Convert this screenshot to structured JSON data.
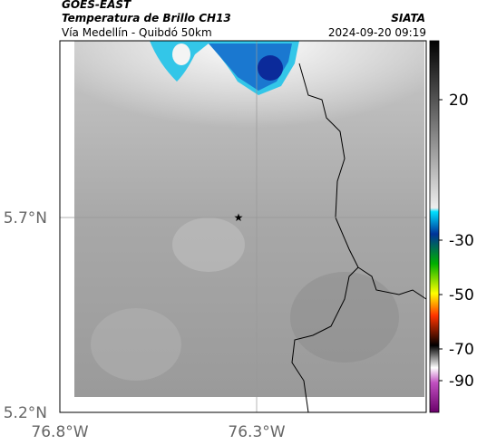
{
  "header": {
    "satellite": "GOES-EAST",
    "product": "Temperatura de Brillo CH13",
    "source": "SIATA",
    "region": "Vía Medellín - Quibdó 50km",
    "timestamp": "2024-09-20 09:19"
  },
  "map": {
    "lat_labels": [
      "5.7°N",
      "5.2°N"
    ],
    "lon_labels": [
      "76.8°W",
      "76.3°W"
    ]
  },
  "colorbar": {
    "labels": [
      "20",
      "-30",
      "-50",
      "-70",
      "-90"
    ]
  }
}
